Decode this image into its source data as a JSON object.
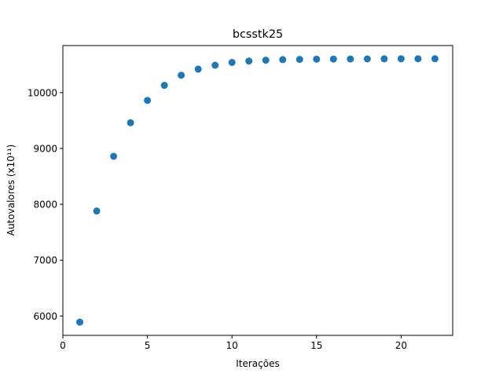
{
  "chart_data": {
    "type": "scatter",
    "title": "bcsstk25",
    "xlabel": "Iterações",
    "ylabel": "Autovalores (x10¹¹)",
    "xlim": [
      0,
      23.05
    ],
    "ylim": [
      5653,
      10842
    ],
    "xticks": [
      0,
      5,
      10,
      15,
      20
    ],
    "yticks": [
      6000,
      7000,
      8000,
      9000,
      10000
    ],
    "grid": false,
    "point_color": "#1f77b4",
    "series": [
      {
        "x": [
          1,
          2,
          3,
          4,
          5,
          6,
          7,
          8,
          9,
          10,
          11,
          12,
          13,
          14,
          15,
          16,
          17,
          18,
          19,
          20,
          21,
          22
        ],
        "y": [
          5890,
          7880,
          8860,
          9460,
          9860,
          10130,
          10310,
          10420,
          10490,
          10540,
          10565,
          10580,
          10590,
          10595,
          10598,
          10600,
          10602,
          10603,
          10604,
          10605,
          10605,
          10606
        ]
      }
    ]
  }
}
